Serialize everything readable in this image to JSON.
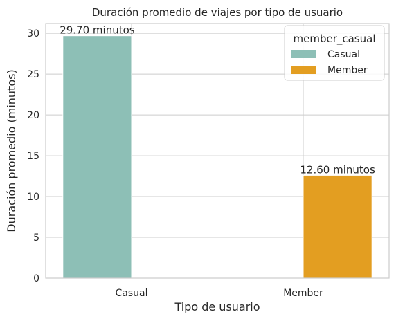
{
  "chart_data": {
    "type": "bar",
    "title": "Duración promedio de viajes por tipo de usuario",
    "xlabel": "Tipo de usuario",
    "ylabel": "Duración promedio (minutos)",
    "categories": [
      "Casual",
      "Member"
    ],
    "series": [
      {
        "name": "Casual",
        "color": "#8dbfb6",
        "values": [
          29.7,
          null
        ]
      },
      {
        "name": "Member",
        "color": "#e39e21",
        "values": [
          null,
          12.6
        ]
      }
    ],
    "data_labels": [
      "29.70 minutos",
      "12.60 minutos"
    ],
    "ylim": [
      0,
      31.2
    ],
    "yticks": [
      0,
      5,
      10,
      15,
      20,
      25,
      30
    ],
    "grid": true,
    "legend": {
      "title": "member_casual",
      "placement": "top-right",
      "entries": [
        "Casual",
        "Member"
      ]
    }
  }
}
